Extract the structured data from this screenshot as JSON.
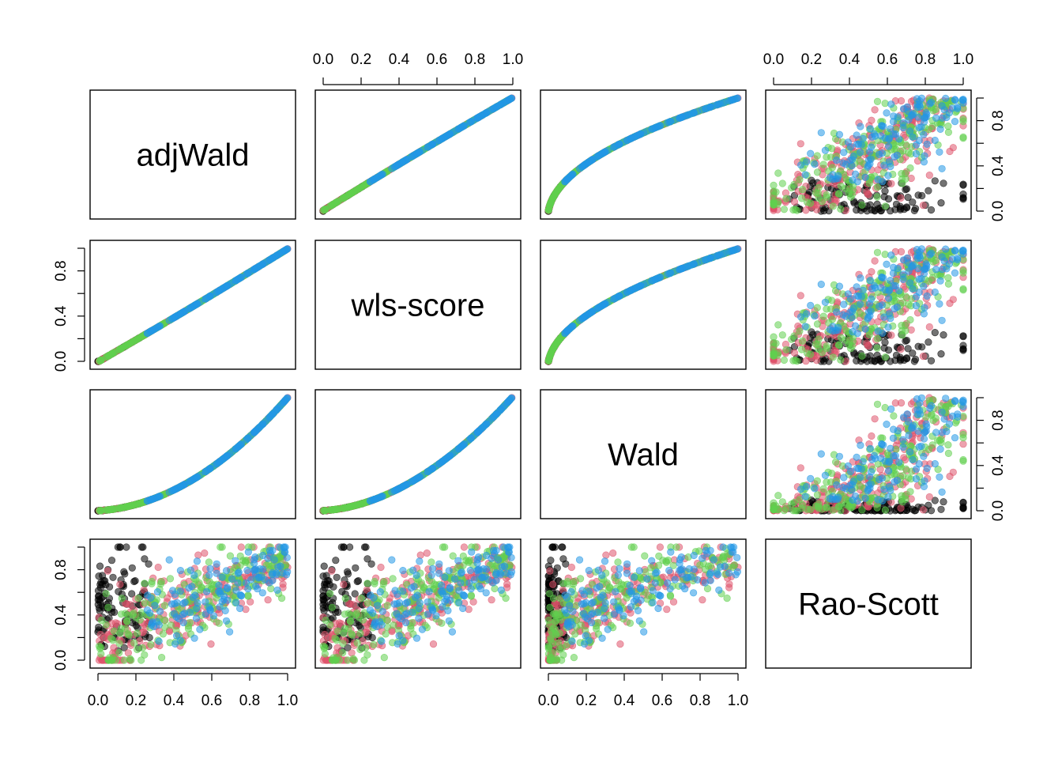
{
  "chart_data": {
    "type": "scatter",
    "variables": [
      "adjWald",
      "wls-score",
      "Wald",
      "Rao-Scott"
    ],
    "xlim": [
      0,
      1
    ],
    "ylim": [
      0,
      1
    ],
    "ticks": [
      0.0,
      0.2,
      0.4,
      0.6,
      0.8,
      1.0
    ],
    "tick_labels": [
      "0.0",
      "0.2",
      "0.4",
      "0.6",
      "0.8",
      "1.0"
    ],
    "y_tick_labels": [
      "0.0",
      "0.4",
      "0.8"
    ],
    "y_tick_label_values": [
      0.0,
      0.4,
      0.8
    ],
    "point_colors": [
      "#000000",
      "#DF536B",
      "#61D04F",
      "#2297E6"
    ],
    "point_opacity": 0.55,
    "grid": false,
    "legend": "none"
  }
}
